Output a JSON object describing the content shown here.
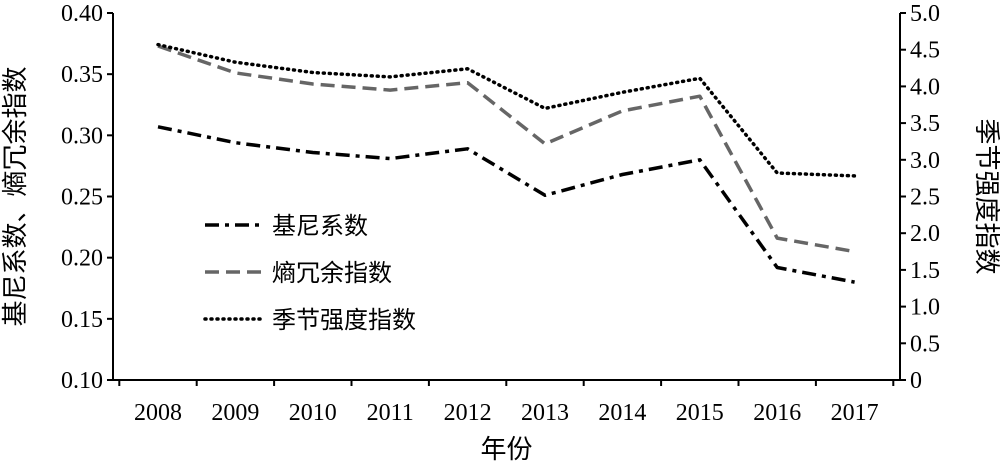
{
  "chart_data": {
    "type": "line",
    "xlabel": "年份",
    "ylabel_left": "基尼系数、熵冗余指数",
    "ylabel_right": "季节强度指数",
    "categories": [
      "2008",
      "2009",
      "2010",
      "2011",
      "2012",
      "2013",
      "2014",
      "2015",
      "2016",
      "2017"
    ],
    "ylim_left": [
      0.1,
      0.4
    ],
    "ylim_right": [
      0,
      5.0
    ],
    "yticks_left": [
      "0.10",
      "0.15",
      "0.20",
      "0.25",
      "0.30",
      "0.35",
      "0.40"
    ],
    "yticks_right": [
      "0",
      "0.5",
      "1.0",
      "1.5",
      "2.0",
      "2.5",
      "3.0",
      "3.5",
      "4.0",
      "4.5",
      "5.0"
    ],
    "series": [
      {
        "name": "基尼系数",
        "axis": "left",
        "style": "dashdot",
        "color": "#000000",
        "values": [
          0.307,
          0.294,
          0.286,
          0.281,
          0.289,
          0.251,
          0.268,
          0.28,
          0.192,
          0.18
        ]
      },
      {
        "name": "熵冗余指数",
        "axis": "left",
        "style": "dashed",
        "color": "#666666",
        "values": [
          0.373,
          0.351,
          0.342,
          0.337,
          0.343,
          0.293,
          0.32,
          0.332,
          0.216,
          0.205
        ]
      },
      {
        "name": "季节强度指数",
        "axis": "right",
        "style": "dotted",
        "color": "#000000",
        "values": [
          4.57,
          4.33,
          4.19,
          4.13,
          4.24,
          3.7,
          3.92,
          4.11,
          2.82,
          2.78
        ]
      }
    ],
    "legend_position": "lower-left inside",
    "grid": false
  }
}
